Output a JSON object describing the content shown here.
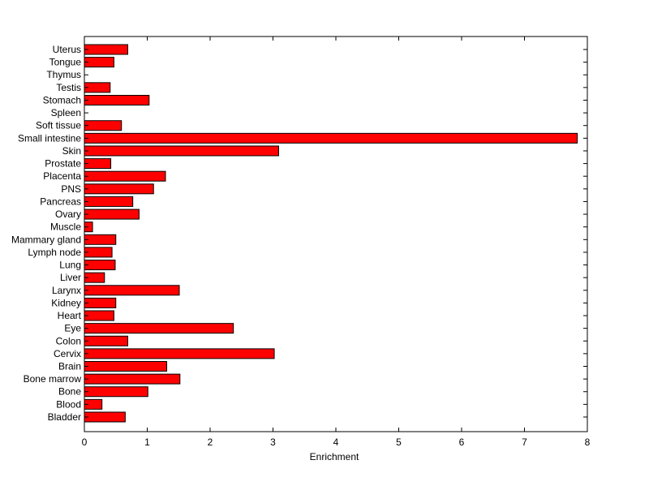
{
  "chart_data": {
    "type": "bar",
    "orientation": "horizontal",
    "categories": [
      "Uterus",
      "Tongue",
      "Thymus",
      "Testis",
      "Stomach",
      "Spleen",
      "Soft tissue",
      "Small intestine",
      "Skin",
      "Prostate",
      "Placenta",
      "PNS",
      "Pancreas",
      "Ovary",
      "Muscle",
      "Mammary gland",
      "Lymph node",
      "Lung",
      "Liver",
      "Larynx",
      "Kidney",
      "Heart",
      "Eye",
      "Colon",
      "Cervix",
      "Brain",
      "Bone marrow",
      "Bone",
      "Blood",
      "Bladder"
    ],
    "values": [
      0.69,
      0.47,
      0.0,
      0.41,
      1.03,
      0.0,
      0.59,
      7.84,
      3.09,
      0.42,
      1.29,
      1.1,
      0.77,
      0.87,
      0.13,
      0.5,
      0.44,
      0.49,
      0.32,
      1.51,
      0.5,
      0.47,
      2.37,
      0.69,
      3.02,
      1.31,
      1.52,
      1.01,
      0.28,
      0.65
    ],
    "title": "",
    "xlabel": "Enrichment",
    "ylabel": "",
    "xlim": [
      0,
      8
    ],
    "xticks": [
      0,
      1,
      2,
      3,
      4,
      5,
      6,
      7,
      8
    ],
    "bar_color": "#ff0000",
    "edge_color": "#000000",
    "grid": false,
    "legend": false
  }
}
